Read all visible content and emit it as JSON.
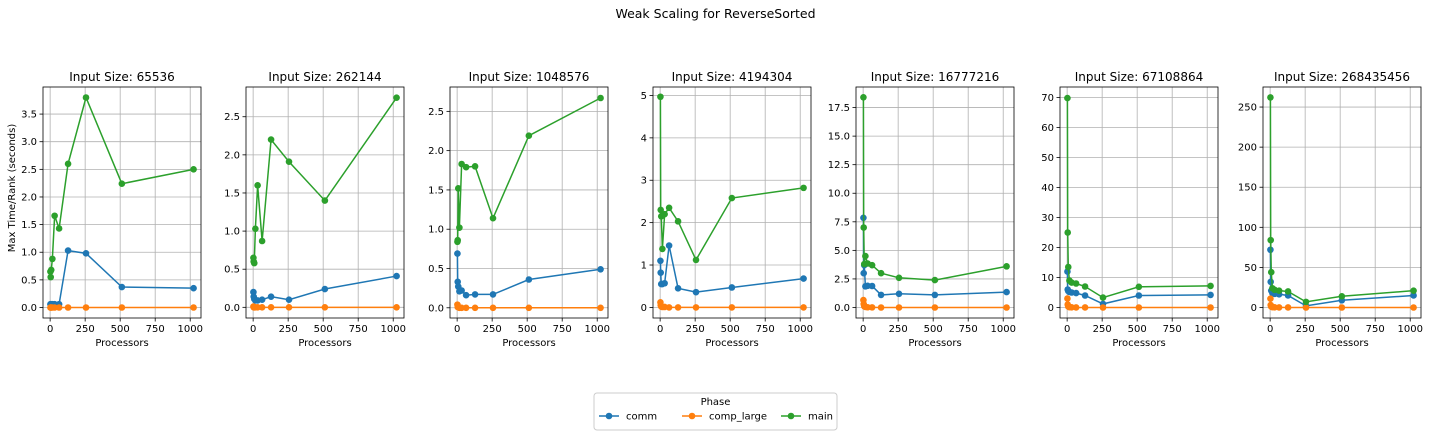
{
  "figure": {
    "title": "Weak Scaling for ReverseSorted",
    "xlabel": "Processors",
    "ylabel": "Max Time/Rank (seconds)",
    "legend": {
      "title": "Phase",
      "placement": "bottom-center",
      "entries": [
        "comm",
        "comp_large",
        "main"
      ]
    }
  },
  "colors": {
    "comm": "#1f77b4",
    "comp_large": "#ff7f0e",
    "main": "#2ca02c",
    "grid": "#b0b0b0"
  },
  "chart_data": [
    {
      "type": "line",
      "title": "Input Size: 65536",
      "xlabel": "Processors",
      "ylabel": "Max Time/Rank (seconds)",
      "x": [
        2,
        4,
        8,
        16,
        32,
        64,
        128,
        256,
        512,
        1024
      ],
      "xlim": [
        -51,
        1077
      ],
      "ylim": [
        -0.19,
        3.99
      ],
      "xticks": [
        0,
        250,
        500,
        750,
        1000
      ],
      "yticks": [
        0.0,
        0.5,
        1.0,
        1.5,
        2.0,
        2.5,
        3.0,
        3.5
      ],
      "ytick_labels": [
        "0.0",
        "0.5",
        "1.0",
        "1.5",
        "2.0",
        "2.5",
        "3.0",
        "3.5"
      ],
      "grid": true,
      "series": [
        {
          "name": "comm",
          "values": [
            0.06,
            0.05,
            0.06,
            0.06,
            0.06,
            0.06,
            1.03,
            0.98,
            0.37,
            0.35
          ]
        },
        {
          "name": "comp_large",
          "values": [
            0.0,
            0.0,
            0.0,
            0.0,
            0.0,
            0.0,
            0.0,
            0.0,
            0.0,
            0.0
          ]
        },
        {
          "name": "main",
          "values": [
            0.65,
            0.55,
            0.68,
            0.88,
            1.66,
            1.43,
            2.6,
            3.8,
            2.24,
            2.5
          ]
        }
      ]
    },
    {
      "type": "line",
      "title": "Input Size: 262144",
      "xlabel": "Processors",
      "x": [
        2,
        4,
        8,
        16,
        32,
        64,
        128,
        256,
        512,
        1024
      ],
      "xlim": [
        -51,
        1077
      ],
      "ylim": [
        -0.14,
        2.89
      ],
      "xticks": [
        0,
        250,
        500,
        750,
        1000
      ],
      "yticks": [
        0.0,
        0.5,
        1.0,
        1.5,
        2.0,
        2.5
      ],
      "ytick_labels": [
        "0.0",
        "0.5",
        "1.0",
        "1.5",
        "2.0",
        "2.5"
      ],
      "grid": true,
      "series": [
        {
          "name": "comm",
          "values": [
            0.2,
            0.14,
            0.11,
            0.09,
            0.09,
            0.1,
            0.14,
            0.1,
            0.24,
            0.41
          ]
        },
        {
          "name": "comp_large",
          "values": [
            0.01,
            0.0,
            0.0,
            0.0,
            0.0,
            0.0,
            0.0,
            0.0,
            0.0,
            0.0
          ]
        },
        {
          "name": "main",
          "values": [
            0.65,
            0.6,
            0.58,
            1.03,
            1.6,
            0.87,
            2.2,
            1.91,
            1.4,
            2.75
          ]
        }
      ]
    },
    {
      "type": "line",
      "title": "Input Size: 1048576",
      "xlabel": "Processors",
      "x": [
        2,
        4,
        8,
        16,
        32,
        64,
        128,
        256,
        512,
        1024
      ],
      "xlim": [
        -51,
        1077
      ],
      "ylim": [
        -0.13,
        2.81
      ],
      "xticks": [
        0,
        250,
        500,
        750,
        1000
      ],
      "yticks": [
        0.0,
        0.5,
        1.0,
        1.5,
        2.0,
        2.5
      ],
      "ytick_labels": [
        "0.0",
        "0.5",
        "1.0",
        "1.5",
        "2.0",
        "2.5"
      ],
      "grid": true,
      "series": [
        {
          "name": "comm",
          "values": [
            0.69,
            0.33,
            0.27,
            0.21,
            0.22,
            0.16,
            0.17,
            0.17,
            0.36,
            0.49
          ]
        },
        {
          "name": "comp_large",
          "values": [
            0.04,
            0.01,
            0.01,
            0.0,
            0.0,
            0.0,
            0.0,
            0.0,
            0.0,
            0.0
          ]
        },
        {
          "name": "main",
          "values": [
            0.84,
            0.86,
            1.52,
            1.02,
            1.83,
            1.79,
            1.8,
            1.14,
            2.19,
            2.67
          ]
        }
      ]
    },
    {
      "type": "line",
      "title": "Input Size: 4194304",
      "xlabel": "Processors",
      "x": [
        2,
        4,
        8,
        16,
        32,
        64,
        128,
        256,
        512,
        1024
      ],
      "xlim": [
        -51,
        1077
      ],
      "ylim": [
        -0.25,
        5.2
      ],
      "xticks": [
        0,
        250,
        500,
        750,
        1000
      ],
      "yticks": [
        0,
        1,
        2,
        3,
        4,
        5
      ],
      "ytick_labels": [
        "0",
        "1",
        "2",
        "3",
        "4",
        "5"
      ],
      "grid": true,
      "series": [
        {
          "name": "comm",
          "values": [
            1.1,
            0.82,
            0.55,
            0.55,
            0.57,
            1.46,
            0.45,
            0.36,
            0.47,
            0.68
          ]
        },
        {
          "name": "comp_large",
          "values": [
            0.12,
            0.05,
            0.02,
            0.01,
            0.01,
            0.0,
            0.0,
            0.0,
            0.0,
            0.0
          ]
        },
        {
          "name": "main",
          "values": [
            4.97,
            2.3,
            2.15,
            1.38,
            2.2,
            2.35,
            2.03,
            1.12,
            2.58,
            2.82
          ]
        }
      ]
    },
    {
      "type": "line",
      "title": "Input Size: 16777216",
      "xlabel": "Processors",
      "x": [
        2,
        4,
        8,
        16,
        32,
        64,
        128,
        256,
        512,
        1024
      ],
      "xlim": [
        -51,
        1077
      ],
      "ylim": [
        -0.92,
        19.3
      ],
      "xticks": [
        0,
        250,
        500,
        750,
        1000
      ],
      "yticks": [
        0.0,
        2.5,
        5.0,
        7.5,
        10.0,
        12.5,
        15.0,
        17.5
      ],
      "ytick_labels": [
        "0.0",
        "2.5",
        "5.0",
        "7.5",
        "10.0",
        "12.5",
        "15.0",
        "17.5"
      ],
      "grid": true,
      "series": [
        {
          "name": "comm",
          "values": [
            7.85,
            3.0,
            3.7,
            1.85,
            1.9,
            1.88,
            1.1,
            1.2,
            1.1,
            1.35
          ]
        },
        {
          "name": "comp_large",
          "values": [
            0.65,
            0.3,
            0.1,
            0.05,
            0.02,
            0.01,
            0.0,
            0.0,
            0.0,
            0.0
          ]
        },
        {
          "name": "main",
          "values": [
            18.4,
            7.0,
            3.8,
            4.5,
            3.85,
            3.7,
            3.0,
            2.6,
            2.4,
            3.6
          ]
        }
      ]
    },
    {
      "type": "line",
      "title": "Input Size: 67108864",
      "xlabel": "Processors",
      "x": [
        2,
        4,
        8,
        16,
        32,
        64,
        128,
        256,
        512,
        1024
      ],
      "xlim": [
        -51,
        1077
      ],
      "ylim": [
        -3.5,
        73.5
      ],
      "xticks": [
        0,
        250,
        500,
        750,
        1000
      ],
      "yticks": [
        0,
        10,
        20,
        30,
        40,
        50,
        60,
        70
      ],
      "ytick_labels": [
        "0",
        "10",
        "20",
        "30",
        "40",
        "50",
        "60",
        "70"
      ],
      "grid": true,
      "series": [
        {
          "name": "comm",
          "values": [
            12.0,
            6.0,
            5.5,
            5.2,
            5.0,
            4.8,
            4.0,
            1.2,
            4.0,
            4.2
          ]
        },
        {
          "name": "comp_large",
          "values": [
            3.0,
            1.0,
            0.3,
            0.1,
            0.05,
            0.02,
            0.01,
            0.0,
            0.0,
            0.0
          ]
        },
        {
          "name": "main",
          "values": [
            69.8,
            25.0,
            13.5,
            9.0,
            8.3,
            8.0,
            7.0,
            3.3,
            6.9,
            7.2
          ]
        }
      ]
    },
    {
      "type": "line",
      "title": "Input Size: 268435456",
      "xlabel": "Processors",
      "x": [
        2,
        4,
        8,
        16,
        32,
        64,
        128,
        256,
        512,
        1024
      ],
      "xlim": [
        -51,
        1077
      ],
      "ylim": [
        -13.1,
        275
      ],
      "xticks": [
        0,
        250,
        500,
        750,
        1000
      ],
      "yticks": [
        0,
        50,
        100,
        150,
        200,
        250
      ],
      "ytick_labels": [
        "0",
        "50",
        "100",
        "150",
        "200",
        "250"
      ],
      "grid": true,
      "series": [
        {
          "name": "comm",
          "values": [
            72.0,
            32.0,
            21.0,
            18.0,
            17.0,
            16.5,
            15.0,
            2.0,
            9.0,
            15.0
          ]
        },
        {
          "name": "comp_large",
          "values": [
            11.0,
            3.0,
            1.0,
            0.4,
            0.2,
            0.1,
            0.05,
            0.0,
            0.0,
            0.0
          ]
        },
        {
          "name": "main",
          "values": [
            262.0,
            84.0,
            44.0,
            24.0,
            22.0,
            21.0,
            20.0,
            7.0,
            14.0,
            21.0
          ]
        }
      ]
    }
  ]
}
